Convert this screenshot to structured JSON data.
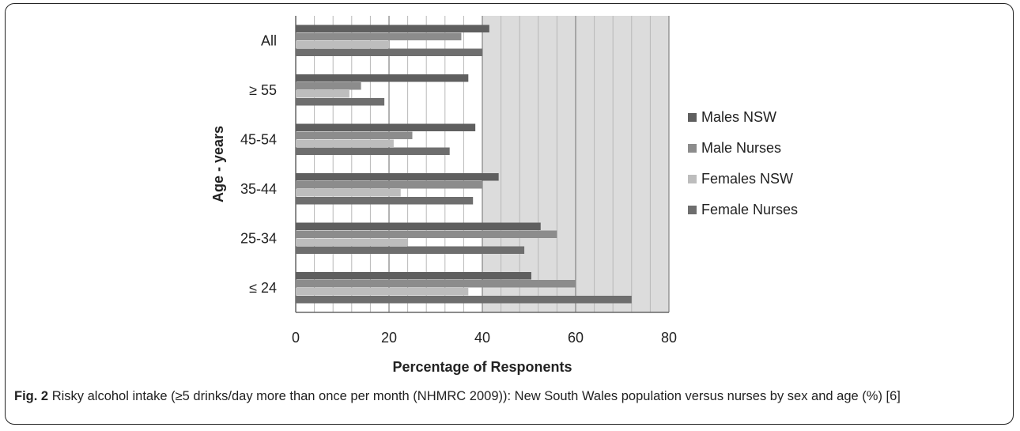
{
  "chart_data": {
    "type": "bar",
    "orientation": "horizontal",
    "categories": [
      "All",
      "≥ 55",
      "45-54",
      "35-44",
      "25-34",
      "≤ 24"
    ],
    "series": [
      {
        "name": "Males NSW",
        "color": "#5f5f5f",
        "values": [
          41.5,
          37,
          38.5,
          43.5,
          52.5,
          50.5
        ]
      },
      {
        "name": "Male Nurses",
        "color": "#8c8c8c",
        "values": [
          35.5,
          14,
          25,
          40,
          56,
          60
        ]
      },
      {
        "name": "Females NSW",
        "color": "#bdbdbd",
        "values": [
          20,
          11.5,
          21,
          22.5,
          24,
          37
        ]
      },
      {
        "name": "Female Nurses",
        "color": "#6e6e6e",
        "values": [
          40,
          19,
          33,
          38,
          49,
          72
        ]
      }
    ],
    "xlabel": "Percentage of Responents",
    "ylabel": "Age - years",
    "xlim": [
      0,
      80
    ],
    "x_ticks": [
      "0",
      "20",
      "40",
      "60",
      "80"
    ],
    "grid": true,
    "legend_position": "right"
  },
  "caption": {
    "label": "Fig. 2",
    "text": "Risky alcohol intake (≥5 drinks/day more than once per month (NHMRC 2009)): New South Wales population versus nurses by sex and age (%) [6]"
  }
}
